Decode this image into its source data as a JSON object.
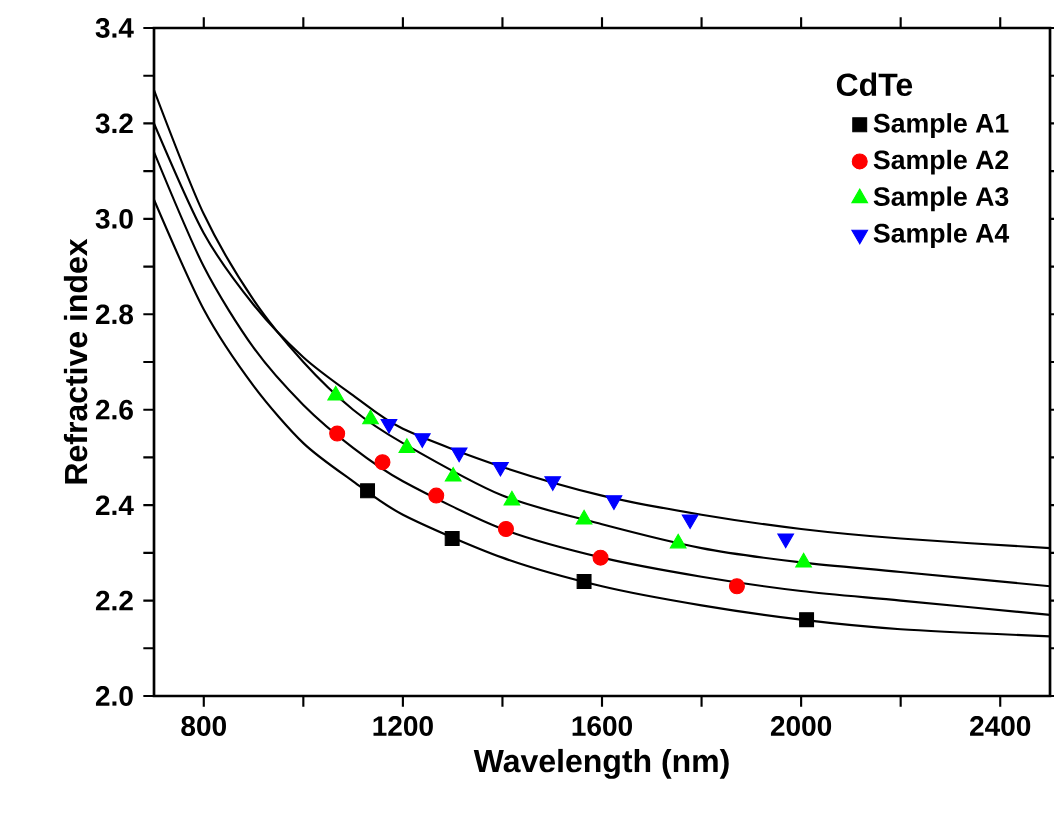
{
  "chart_data": {
    "type": "scatter",
    "xlabel": "Wavelength (nm)",
    "ylabel": "Refractive index",
    "legend_title": "CdTe",
    "legend": "top right",
    "xlim": [
      700,
      2500
    ],
    "ylim": [
      2.0,
      3.4
    ],
    "xticks": [
      800,
      {
        "value": 1000,
        "label": null
      },
      1200,
      {
        "value": 1400,
        "label": null
      },
      1600,
      {
        "value": 1800,
        "label": null
      },
      2000,
      {
        "value": 2200,
        "label": null
      },
      2400
    ],
    "yticks": [
      {
        "value": 2,
        "label": "2.0"
      },
      {
        "value": 2.1,
        "label": null
      },
      2.2,
      {
        "value": 2.3,
        "label": null
      },
      2.4,
      {
        "value": 2.5,
        "label": null
      },
      2.6,
      {
        "value": 2.7,
        "label": null
      },
      2.8,
      {
        "value": 2.9,
        "label": null
      },
      {
        "value": 3,
        "label": "3.0"
      },
      {
        "value": 3.1,
        "label": null
      },
      3.2,
      {
        "value": 3.3,
        "label": null
      },
      3.4
    ],
    "series": [
      {
        "name": "Sample A1",
        "color": "#000000",
        "marker": "square",
        "x": [
          1129,
          1299,
          1564,
          2011
        ],
        "values": [
          2.43,
          2.33,
          2.24,
          2.16
        ]
      },
      {
        "name": "Sample A2",
        "color": "#ff0000",
        "marker": "circle",
        "x": [
          1068,
          1159,
          1267,
          1407,
          1597,
          1871
        ],
        "values": [
          2.55,
          2.49,
          2.42,
          2.35,
          2.29,
          2.23
        ]
      },
      {
        "name": "Sample A3",
        "color": "#00ff00",
        "marker": "triangle",
        "x": [
          1065,
          1135,
          1208,
          1301,
          1419,
          1564,
          1753,
          2005
        ],
        "values": [
          2.63,
          2.58,
          2.52,
          2.46,
          2.41,
          2.37,
          2.32,
          2.28
        ]
      },
      {
        "name": "Sample A4",
        "color": "#0000ff",
        "marker": "triangle-down",
        "x": [
          1172,
          1239,
          1313,
          1396,
          1501,
          1624,
          1777,
          1969
        ],
        "values": [
          2.57,
          2.54,
          2.51,
          2.48,
          2.45,
          2.41,
          2.37,
          2.33
        ]
      },
      {
        "type": "line",
        "color": "#000000",
        "marker": "none",
        "line_style": "solid",
        "x": [
          700,
          800,
          900,
          1000,
          1100,
          1200,
          1400,
          1600,
          1800,
          2000,
          2200,
          2500
        ],
        "values": [
          3.04,
          2.81,
          2.65,
          2.53,
          2.45,
          2.38,
          2.29,
          2.23,
          2.19,
          2.16,
          2.14,
          2.125
        ]
      },
      {
        "type": "line",
        "color": "#000000",
        "marker": "none",
        "line_style": "solid",
        "x": [
          700,
          800,
          900,
          1000,
          1100,
          1200,
          1400,
          1600,
          1800,
          2000,
          2200,
          2500
        ],
        "values": [
          3.14,
          2.9,
          2.73,
          2.61,
          2.52,
          2.45,
          2.35,
          2.29,
          2.25,
          2.22,
          2.2,
          2.17
        ]
      },
      {
        "type": "line",
        "color": "#000000",
        "marker": "none",
        "line_style": "solid",
        "x": [
          700,
          800,
          900,
          1000,
          1100,
          1200,
          1400,
          1600,
          1800,
          2000,
          2200,
          2500
        ],
        "values": [
          3.27,
          3.01,
          2.83,
          2.7,
          2.6,
          2.53,
          2.42,
          2.36,
          2.31,
          2.28,
          2.26,
          2.23
        ]
      },
      {
        "type": "line",
        "color": "#000000",
        "marker": "none",
        "line_style": "solid",
        "x": [
          700,
          800,
          900,
          1000,
          1100,
          1200,
          1400,
          1600,
          1800,
          2000,
          2200,
          2500
        ],
        "values": [
          3.2,
          2.97,
          2.82,
          2.71,
          2.63,
          2.56,
          2.48,
          2.42,
          2.38,
          2.35,
          2.33,
          2.31
        ]
      }
    ]
  }
}
